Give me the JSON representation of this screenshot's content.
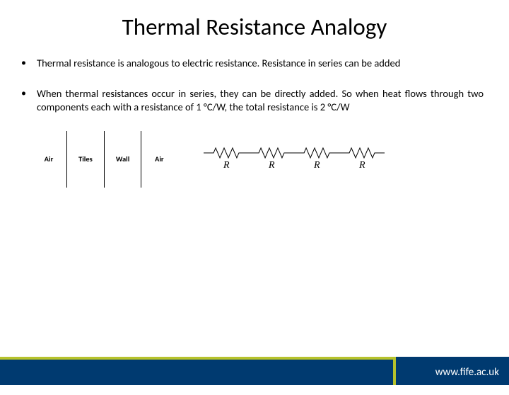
{
  "title": "Thermal Resistance Analogy",
  "bullets": [
    {
      "text": "Thermal resistance is analogous to electric resistance. Resistance in series can be added",
      "justify": false
    },
    {
      "text": "When thermal resistances occur in series, they can be directly added. So when heat flows through two components each with a resistance of 1 °C/W, the total resistance is 2 °C/W",
      "justify": true
    }
  ],
  "layers": [
    "Air",
    "Tiles",
    "Wall",
    "Air"
  ],
  "resistors": {
    "count": 4,
    "label": "R",
    "stroke": "#000000",
    "stroke_width": 1,
    "unit_width": 64,
    "unit_height": 18
  },
  "footer": {
    "link_text": "www.fife.ac.uk",
    "bar_color": "#003a70",
    "accent_color": "#b6c22c"
  }
}
